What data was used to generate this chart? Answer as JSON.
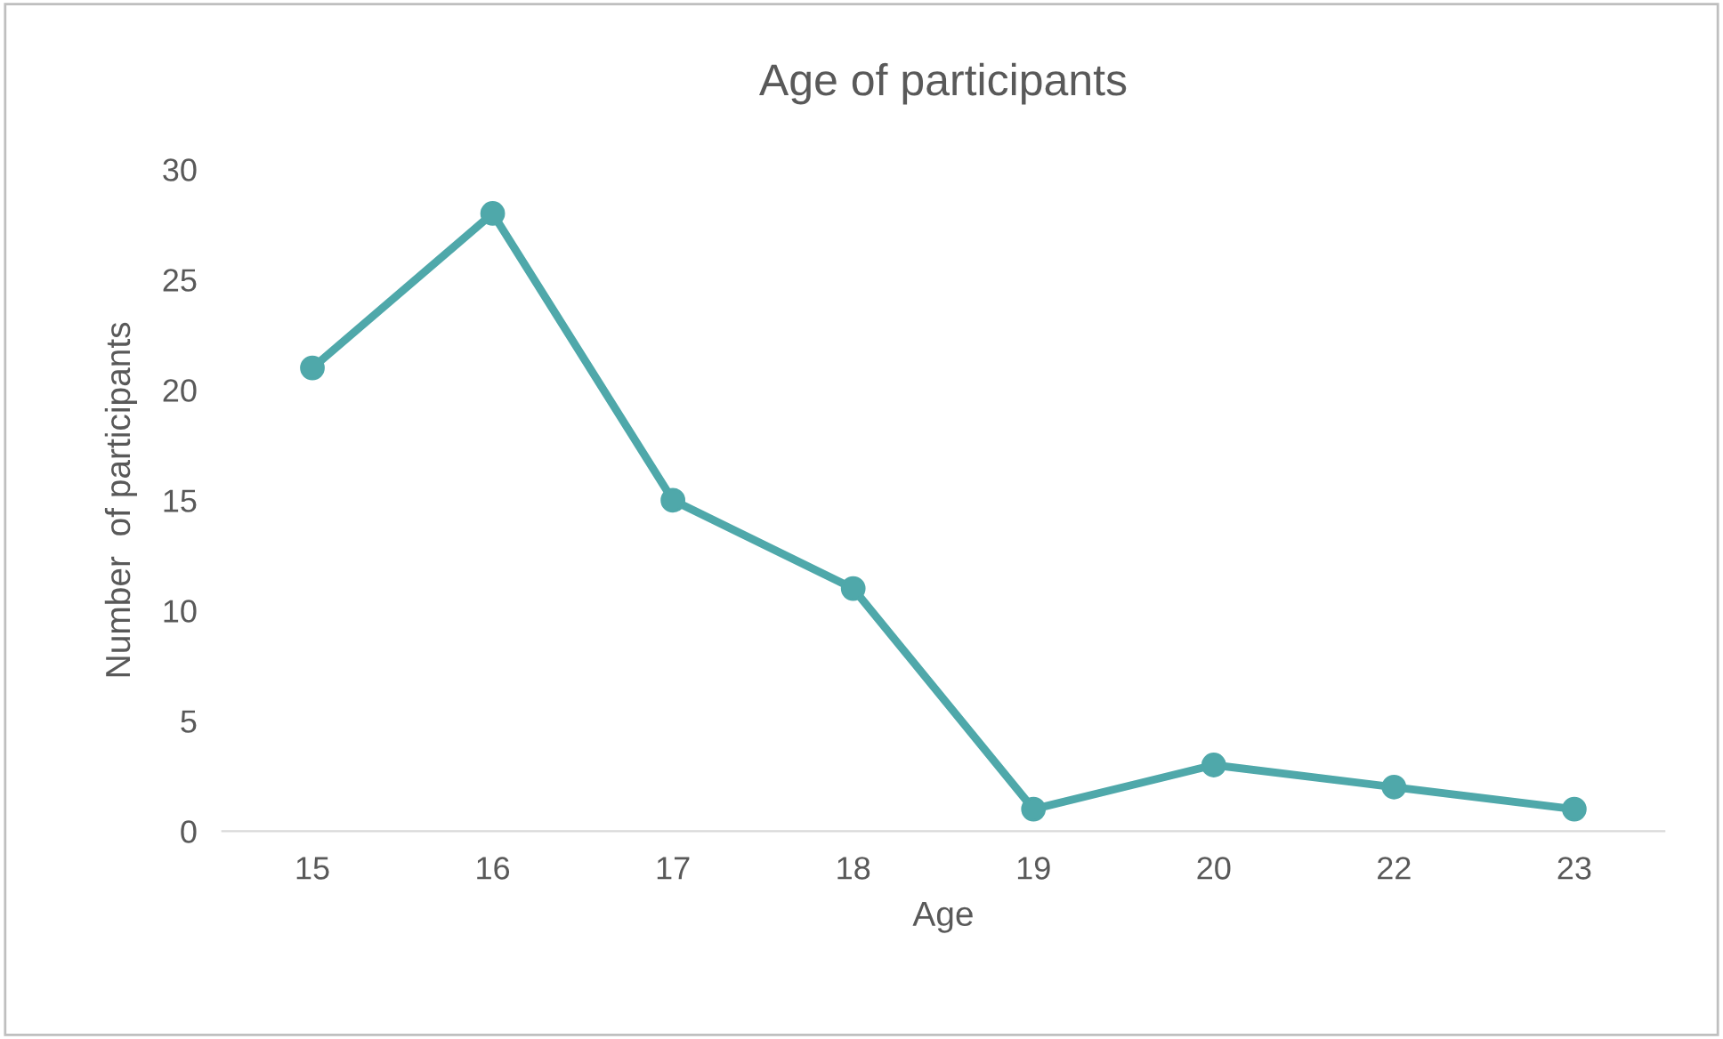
{
  "chart_data": {
    "type": "line",
    "title": "Age of participants",
    "xlabel": "Age",
    "ylabel": "Number  of participants",
    "categories": [
      "15",
      "16",
      "17",
      "18",
      "19",
      "20",
      "22",
      "23"
    ],
    "series": [
      {
        "color": "#4fa8aa",
        "values": [
          21,
          28,
          15,
          11,
          1,
          3,
          2,
          1
        ]
      }
    ],
    "ylim": [
      0,
      30
    ],
    "yticks": [
      0,
      5,
      10,
      15,
      20,
      25,
      30
    ],
    "grid": false,
    "legend": false,
    "marker": "circle",
    "line_style": "solid"
  }
}
